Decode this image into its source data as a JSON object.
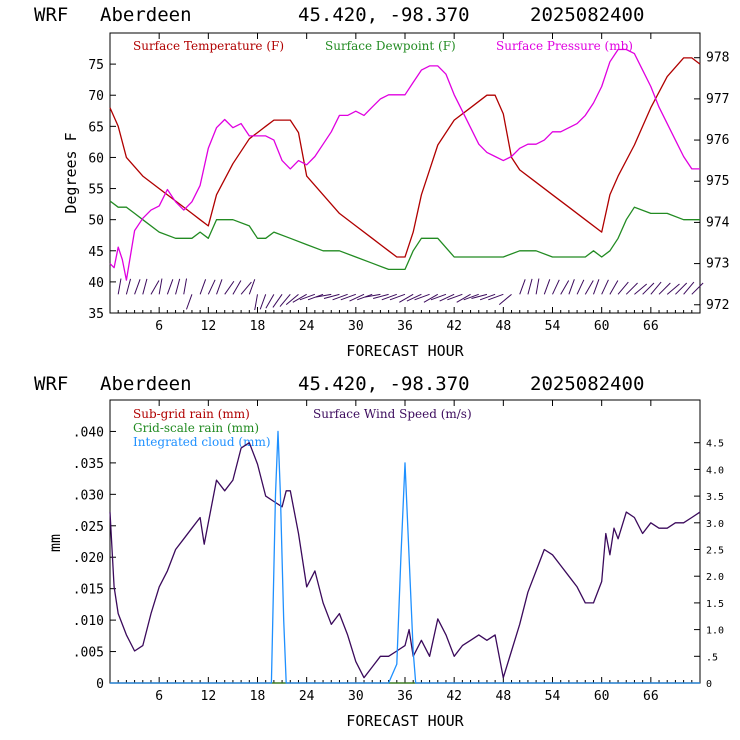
{
  "panels": [
    {
      "header": {
        "model": "WRF",
        "station": "Aberdeen",
        "coords": "45.420, -98.370",
        "run": "2025082400"
      },
      "xlabel": "FORECAST HOUR",
      "ylabel_left": "Degrees F",
      "legend": [
        "Surface Temperature (F)",
        "Surface Dewpoint (F)",
        "Surface Pressure (mb)"
      ]
    },
    {
      "header": {
        "model": "WRF",
        "station": "Aberdeen",
        "coords": "45.420, -98.370",
        "run": "2025082400"
      },
      "xlabel": "FORECAST HOUR",
      "ylabel_left": "mm",
      "legend": [
        "Sub-grid rain (mm)",
        "Surface Wind Speed (m/s)",
        "Grid-scale rain (mm)",
        "Integrated cloud (mm)"
      ]
    }
  ],
  "chart_data": [
    {
      "type": "line",
      "title": "WRF Aberdeen 45.420, -98.370 2025082400",
      "xlabel": "FORECAST HOUR",
      "ylabel": "Degrees F",
      "xlim": [
        0,
        72
      ],
      "ylim": [
        35,
        80
      ],
      "y2lim": [
        971.8,
        978.6
      ],
      "xticks": [
        6,
        12,
        18,
        24,
        30,
        36,
        42,
        48,
        54,
        60,
        66
      ],
      "yticks": [
        35,
        40,
        45,
        50,
        55,
        60,
        65,
        70,
        75
      ],
      "y2ticks": [
        972,
        973,
        974,
        975,
        976,
        977,
        978
      ],
      "colors": {
        "temperature": "#b00000",
        "dewpoint": "#228b22",
        "pressure": "#e000e0",
        "wind": "#3b0a5c"
      },
      "series": [
        {
          "name": "Surface Temperature (F)",
          "axis": "left",
          "x": [
            0,
            1,
            2,
            4,
            6,
            8,
            10,
            11,
            12,
            13,
            15,
            17,
            18,
            19,
            20,
            21,
            22,
            23,
            24,
            26,
            28,
            30,
            32,
            34,
            35,
            36,
            37,
            38,
            39,
            40,
            42,
            44,
            46,
            47,
            48,
            49,
            50,
            52,
            54,
            56,
            58,
            60,
            61,
            62,
            64,
            66,
            68,
            70,
            71,
            72
          ],
          "y": [
            68,
            65,
            60,
            57,
            55,
            53,
            51,
            50,
            49,
            54,
            59,
            63,
            64,
            65,
            66,
            66,
            66,
            64,
            57,
            54,
            51,
            49,
            47,
            45,
            44,
            44,
            48,
            54,
            58,
            62,
            66,
            68,
            70,
            70,
            67,
            60,
            58,
            56,
            54,
            52,
            50,
            48,
            54,
            57,
            62,
            68,
            73,
            76,
            76,
            75
          ]
        },
        {
          "name": "Surface Dewpoint (F)",
          "axis": "left",
          "x": [
            0,
            1,
            2,
            3,
            4,
            6,
            8,
            10,
            11,
            12,
            13,
            14,
            15,
            17,
            18,
            19,
            20,
            22,
            24,
            26,
            28,
            30,
            32,
            34,
            35,
            36,
            37,
            38,
            39,
            40,
            42,
            44,
            46,
            48,
            50,
            52,
            54,
            56,
            58,
            59,
            60,
            61,
            62,
            63,
            64,
            66,
            68,
            70,
            72
          ],
          "y": [
            53,
            52,
            52,
            51,
            50,
            48,
            47,
            47,
            48,
            47,
            50,
            50,
            50,
            49,
            47,
            47,
            48,
            47,
            46,
            45,
            45,
            44,
            43,
            42,
            42,
            42,
            45,
            47,
            47,
            47,
            44,
            44,
            44,
            44,
            45,
            45,
            44,
            44,
            44,
            45,
            44,
            45,
            47,
            50,
            52,
            51,
            51,
            50,
            50
          ]
        },
        {
          "name": "Surface Pressure (mb)",
          "axis": "right",
          "x": [
            0,
            0.5,
            1,
            1.5,
            2,
            3,
            4,
            5,
            6,
            7,
            8,
            9,
            10,
            11,
            12,
            13,
            14,
            15,
            16,
            17,
            18,
            19,
            20,
            21,
            22,
            23,
            24,
            25,
            26,
            27,
            28,
            29,
            30,
            31,
            32,
            33,
            34,
            35,
            36,
            37,
            38,
            39,
            40,
            41,
            42,
            43,
            44,
            45,
            46,
            47,
            48,
            49,
            50,
            51,
            52,
            53,
            54,
            55,
            56,
            57,
            58,
            59,
            60,
            61,
            62,
            63,
            64,
            65,
            66,
            67,
            68,
            69,
            70,
            71,
            72
          ],
          "y": [
            973.0,
            972.9,
            973.4,
            973.1,
            972.6,
            973.8,
            974.1,
            974.3,
            974.4,
            974.8,
            974.5,
            974.3,
            974.5,
            974.9,
            975.8,
            976.3,
            976.5,
            976.3,
            976.4,
            976.1,
            976.1,
            976.1,
            976.0,
            975.5,
            975.3,
            975.5,
            975.4,
            975.6,
            975.9,
            976.2,
            976.6,
            976.6,
            976.7,
            976.6,
            976.8,
            977.0,
            977.1,
            977.1,
            977.1,
            977.4,
            977.7,
            977.8,
            977.8,
            977.6,
            977.1,
            976.7,
            976.3,
            975.9,
            975.7,
            975.6,
            975.5,
            975.6,
            975.8,
            975.9,
            975.9,
            976.0,
            976.2,
            976.2,
            976.3,
            976.4,
            976.6,
            976.9,
            977.3,
            977.9,
            978.2,
            978.2,
            978.1,
            977.7,
            977.3,
            976.8,
            976.4,
            976.0,
            975.6,
            975.3,
            975.3
          ]
        }
      ],
      "wind_barbs": {
        "name": "Wind barbs",
        "x": [
          1,
          2,
          3,
          4,
          5,
          6,
          7,
          8,
          9,
          10,
          11,
          12,
          13,
          14,
          15,
          16,
          17,
          18,
          19,
          20,
          21,
          22,
          23,
          24,
          25,
          26,
          27,
          28,
          29,
          30,
          31,
          32,
          33,
          34,
          35,
          36,
          37,
          38,
          39,
          40,
          41,
          42,
          43,
          44,
          45,
          46,
          47,
          48,
          49,
          50,
          51,
          52,
          53,
          54,
          55,
          56,
          57,
          58,
          59,
          60,
          61,
          62,
          63,
          64,
          65,
          66,
          67,
          68,
          69,
          70,
          71
        ],
        "direction_deg": [
          10,
          15,
          20,
          15,
          30,
          10,
          20,
          15,
          10,
          200,
          20,
          25,
          20,
          35,
          30,
          40,
          20,
          190,
          200,
          210,
          215,
          220,
          230,
          240,
          250,
          250,
          260,
          255,
          250,
          250,
          245,
          250,
          260,
          255,
          250,
          250,
          240,
          245,
          250,
          240,
          250,
          245,
          250,
          240,
          250,
          255,
          250,
          250,
          230,
          20,
          15,
          10,
          20,
          25,
          30,
          20,
          25,
          30,
          20,
          25,
          30,
          40,
          45,
          50,
          45,
          40,
          45,
          50,
          45,
          40,
          45
        ]
      }
    },
    {
      "type": "line",
      "title": "WRF Aberdeen 45.420, -98.370 2025082400",
      "xlabel": "FORECAST HOUR",
      "ylabel": "mm",
      "xlim": [
        0,
        72
      ],
      "ylim": [
        0,
        0.045
      ],
      "y2lim": [
        0,
        5.3
      ],
      "xticks": [
        6,
        12,
        18,
        24,
        30,
        36,
        42,
        48,
        54,
        60,
        66
      ],
      "yticks": [
        0,
        0.005,
        0.01,
        0.015,
        0.02,
        0.025,
        0.03,
        0.035,
        0.04
      ],
      "ytick_labels": [
        "0",
        ".005",
        ".010",
        ".015",
        ".020",
        ".025",
        ".030",
        ".035",
        ".040"
      ],
      "y2ticks": [
        0,
        0.5,
        1.0,
        1.5,
        2.0,
        2.5,
        3.0,
        3.5,
        4.0,
        4.5
      ],
      "y2tick_labels": [
        "0",
        ".5",
        "1.0",
        "1.5",
        "2.0",
        "2.5",
        "3.0",
        "3.5",
        "4.0",
        "4.5"
      ],
      "colors": {
        "subgrid": "#b00000",
        "wind": "#3b0a5c",
        "gridscale": "#228b22",
        "cloud": "#1e90ff"
      },
      "series": [
        {
          "name": "Sub-grid rain (mm)",
          "axis": "left",
          "x": [
            0,
            72
          ],
          "y": [
            0,
            0
          ]
        },
        {
          "name": "Grid-scale rain (mm)",
          "axis": "left",
          "x": [
            0,
            72
          ],
          "y": [
            0,
            0
          ]
        },
        {
          "name": "Surface Wind Speed (m/s)",
          "axis": "right",
          "x": [
            0,
            0.5,
            1,
            2,
            3,
            4,
            5,
            6,
            7,
            8,
            9,
            10,
            11,
            11.5,
            12,
            13,
            14,
            15,
            16,
            17,
            18,
            19,
            20,
            21,
            21.5,
            22,
            23,
            24,
            25,
            26,
            27,
            28,
            29,
            30,
            31,
            32,
            33,
            34,
            35,
            36,
            36.5,
            37,
            38,
            39,
            40,
            41,
            42,
            43,
            44,
            45,
            46,
            47,
            48,
            49,
            50,
            51,
            52,
            53,
            54,
            55,
            56,
            57,
            58,
            59,
            60,
            60.5,
            61,
            61.5,
            62,
            63,
            64,
            65,
            66,
            67,
            68,
            69,
            70,
            71,
            72
          ],
          "y": [
            3.2,
            1.8,
            1.3,
            0.9,
            0.6,
            0.7,
            1.3,
            1.8,
            2.1,
            2.5,
            2.7,
            2.9,
            3.1,
            2.6,
            3.0,
            3.8,
            3.6,
            3.8,
            4.4,
            4.5,
            4.1,
            3.5,
            3.4,
            3.3,
            3.6,
            3.6,
            2.8,
            1.8,
            2.1,
            1.5,
            1.1,
            1.3,
            0.9,
            0.4,
            0.1,
            0.3,
            0.5,
            0.5,
            0.6,
            0.7,
            1.0,
            0.5,
            0.8,
            0.5,
            1.2,
            0.9,
            0.5,
            0.7,
            0.8,
            0.9,
            0.8,
            0.9,
            0.1,
            0.6,
            1.1,
            1.7,
            2.1,
            2.5,
            2.4,
            2.2,
            2.0,
            1.8,
            1.5,
            1.5,
            1.9,
            2.8,
            2.4,
            2.9,
            2.7,
            3.2,
            3.1,
            2.8,
            3.0,
            2.9,
            2.9,
            3.0,
            3.0,
            3.1,
            3.2
          ]
        },
        {
          "name": "Integrated cloud (mm)",
          "axis": "left",
          "x": [
            0,
            19.7,
            20.2,
            20.5,
            20.8,
            21.2,
            21.5,
            33,
            34,
            35,
            35.5,
            36,
            36.5,
            37,
            37.3,
            72
          ],
          "y": [
            0,
            0,
            0.03,
            0.04,
            0.03,
            0.01,
            0,
            0,
            0,
            0.003,
            0.02,
            0.035,
            0.02,
            0.005,
            0,
            0
          ]
        }
      ]
    }
  ]
}
